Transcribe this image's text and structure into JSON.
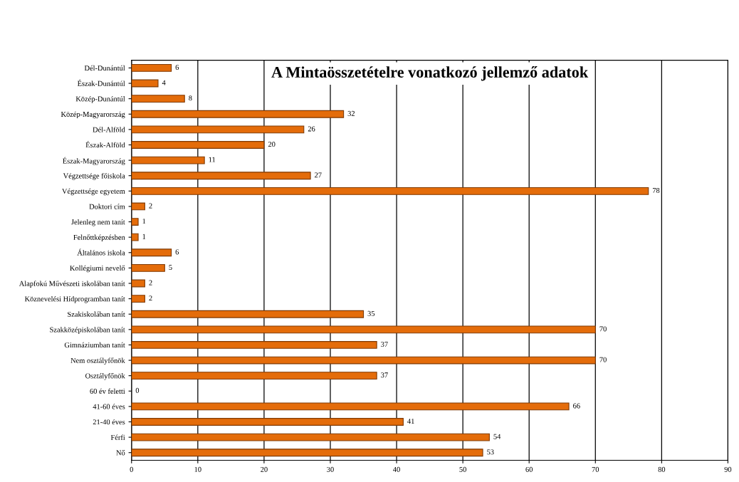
{
  "chart_data": {
    "type": "bar",
    "orientation": "horizontal",
    "title": "A Mintaösszetételre vonatkozó jellemző adatok",
    "categories": [
      "Dél-Dunántúl",
      "Észak-Dunántúl",
      "Közép-Dunántúl",
      "Közép-Magyarország",
      "Dél-Alföld",
      "Észak-Alföld",
      "Észak-Magyarország",
      "Végzettsége főiskola",
      "Végzettsége egyetem",
      "Doktori cím",
      "Jelenleg nem tanít",
      "Felnőttképzésben",
      "Általános iskola",
      "Kollégiumi nevelő",
      "Alapfokú Művészeti iskolában tanít",
      "Köznevelési Hídprogramban tanít",
      "Szakiskolában tanít",
      "Szakközépiskolában tanít",
      "Gimnáziumban tanít",
      "Nem osztályfőnök",
      "Osztályfőnök",
      "60 év feletti",
      "41-60 éves",
      "21-40 éves",
      "Férfi",
      "Nő"
    ],
    "values": [
      6,
      4,
      8,
      32,
      26,
      20,
      11,
      27,
      78,
      2,
      1,
      1,
      6,
      5,
      2,
      2,
      35,
      70,
      37,
      70,
      37,
      0,
      66,
      41,
      54,
      53
    ],
    "color": "#e46c0a",
    "data_labels": true,
    "grid": "x",
    "xlim": [
      0,
      90
    ],
    "xticks": [
      0,
      10,
      20,
      30,
      40,
      50,
      60,
      70,
      80,
      90
    ]
  }
}
